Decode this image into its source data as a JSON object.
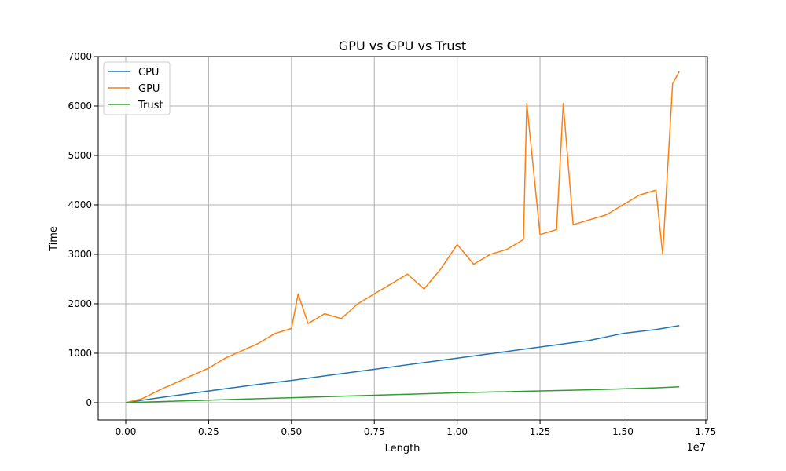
{
  "chart_data": {
    "type": "line",
    "title": "GPU vs GPU vs Trust",
    "xlabel": "Length",
    "ylabel": "Time",
    "x_offset_label": "1e7",
    "xlim": [
      -0.083,
      1.755
    ],
    "ylim": [
      -350,
      7000
    ],
    "x_ticks": [
      0.0,
      0.25,
      0.5,
      0.75,
      1.0,
      1.25,
      1.5,
      1.75
    ],
    "x_tick_labels": [
      "0.00",
      "0.25",
      "0.50",
      "0.75",
      "1.00",
      "1.25",
      "1.50",
      "1.75"
    ],
    "y_ticks": [
      0,
      1000,
      2000,
      3000,
      4000,
      5000,
      6000,
      7000
    ],
    "y_tick_labels": [
      "0",
      "1000",
      "2000",
      "3000",
      "4000",
      "5000",
      "6000",
      "7000"
    ],
    "grid": true,
    "legend_position": "upper-left",
    "series": [
      {
        "name": "CPU",
        "color": "#1f77b4",
        "x": [
          0.0,
          0.1,
          0.2,
          0.3,
          0.4,
          0.5,
          0.6,
          0.7,
          0.8,
          0.9,
          1.0,
          1.1,
          1.2,
          1.3,
          1.4,
          1.5,
          1.6,
          1.67
        ],
        "y": [
          0,
          100,
          190,
          280,
          370,
          450,
          540,
          630,
          720,
          810,
          900,
          990,
          1080,
          1170,
          1260,
          1400,
          1480,
          1560
        ]
      },
      {
        "name": "GPU",
        "color": "#ff7f0e",
        "x": [
          0.0,
          0.05,
          0.1,
          0.15,
          0.2,
          0.25,
          0.3,
          0.35,
          0.4,
          0.45,
          0.5,
          0.52,
          0.55,
          0.6,
          0.65,
          0.7,
          0.75,
          0.8,
          0.85,
          0.9,
          0.95,
          1.0,
          1.05,
          1.1,
          1.15,
          1.2,
          1.21,
          1.25,
          1.3,
          1.32,
          1.35,
          1.4,
          1.45,
          1.5,
          1.55,
          1.6,
          1.62,
          1.65,
          1.67
        ],
        "y": [
          0,
          80,
          250,
          400,
          550,
          700,
          900,
          1050,
          1200,
          1400,
          1500,
          2200,
          1600,
          1800,
          1700,
          2000,
          2200,
          2400,
          2600,
          2300,
          2700,
          3200,
          2800,
          3000,
          3100,
          3300,
          6050,
          3400,
          3500,
          6050,
          3600,
          3700,
          3800,
          4000,
          4200,
          4300,
          3000,
          6450,
          6700
        ]
      },
      {
        "name": "Trust",
        "color": "#2ca02c",
        "x": [
          0.0,
          0.2,
          0.4,
          0.6,
          0.8,
          1.0,
          1.2,
          1.4,
          1.6,
          1.67
        ],
        "y": [
          0,
          40,
          80,
          120,
          160,
          200,
          230,
          260,
          300,
          320
        ]
      }
    ]
  }
}
